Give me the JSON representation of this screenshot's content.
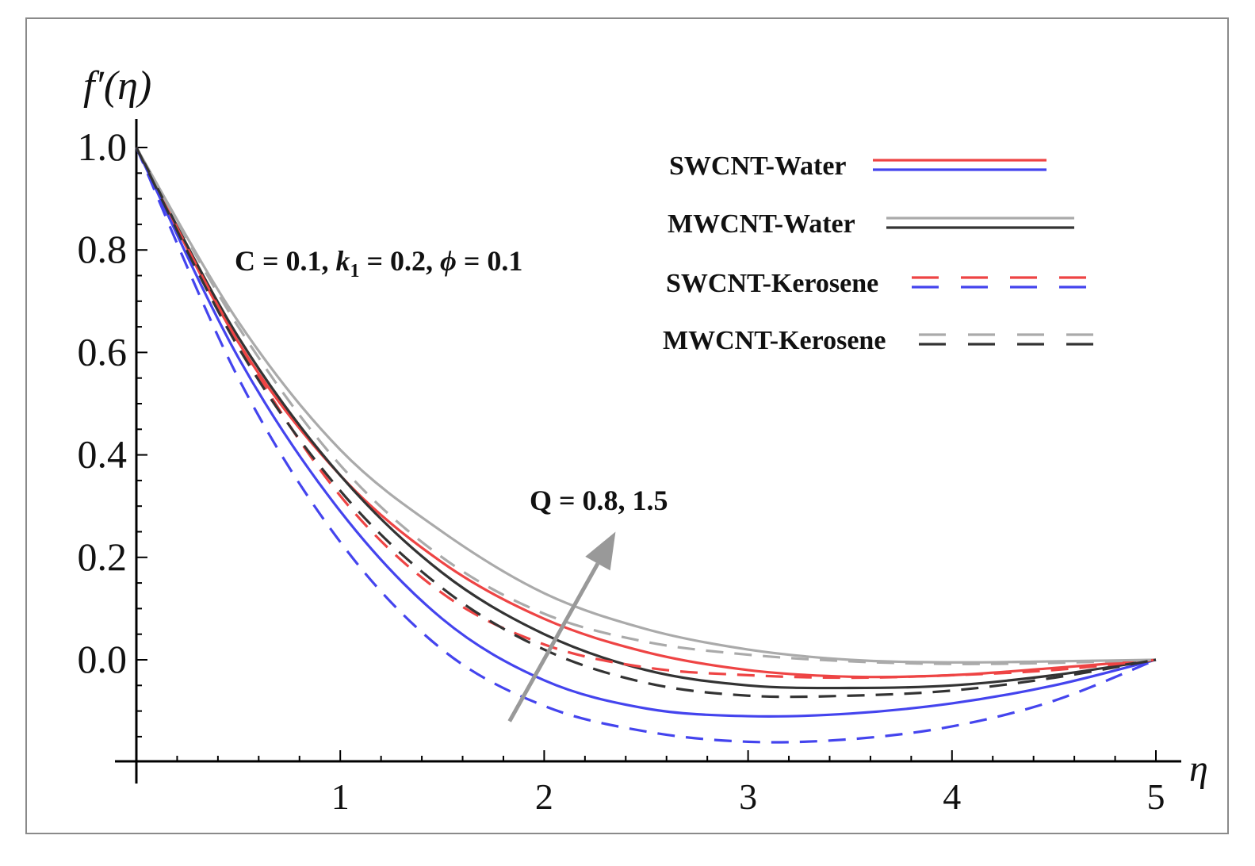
{
  "chart_data": {
    "type": "line",
    "title": "",
    "xlabel": "η",
    "ylabel": "f′(η)",
    "xlim": [
      0,
      5
    ],
    "ylim": [
      -0.2,
      1.0
    ],
    "x_ticks": [
      1,
      2,
      3,
      4,
      5
    ],
    "y_ticks": [
      0.0,
      0.2,
      0.4,
      0.6,
      0.8,
      1.0
    ],
    "x_tick_labels": [
      "1",
      "2",
      "3",
      "4",
      "5"
    ],
    "y_tick_labels": [
      "0.0",
      "0.2",
      "0.4",
      "0.6",
      "0.8",
      "1.0"
    ],
    "grid": false,
    "legend": [
      {
        "label": "SWCNT-Water",
        "colors": [
          "#ee4444",
          "#4444ee"
        ],
        "dash": false
      },
      {
        "label": "MWCNT-Water",
        "colors": [
          "#aaaaaa",
          "#333333"
        ],
        "dash": false
      },
      {
        "label": "SWCNT-Kerosene",
        "colors": [
          "#ee4444",
          "#4444ee"
        ],
        "dash": true
      },
      {
        "label": "MWCNT-Kerosene",
        "colors": [
          "#aaaaaa",
          "#333333"
        ],
        "dash": true
      }
    ],
    "annotations": {
      "params_prefix": "C = 0.1, ",
      "params_k": "k",
      "params_k_sub": "1",
      "params_mid": " = 0.2, ",
      "params_phi": "ϕ",
      "params_suffix": " = 0.1",
      "arrow_label": "Q = 0.8, 1.5",
      "arrow_from": [
        1.83,
        -0.12
      ],
      "arrow_to": [
        2.35,
        0.25
      ]
    },
    "series": [
      {
        "name": "SWCNT-Water Q=1.5",
        "color": "#ee4444",
        "dash": false,
        "x": [
          0,
          0.5,
          1,
          1.5,
          2,
          2.5,
          3,
          3.5,
          4,
          4.5,
          5
        ],
        "y": [
          1.0,
          0.62,
          0.36,
          0.19,
          0.08,
          0.015,
          -0.02,
          -0.033,
          -0.03,
          -0.016,
          0.0
        ]
      },
      {
        "name": "SWCNT-Water Q=0.8",
        "color": "#4444ee",
        "dash": false,
        "x": [
          0,
          0.5,
          1,
          1.5,
          2,
          2.5,
          3,
          3.5,
          4,
          4.5,
          5
        ],
        "y": [
          1.0,
          0.59,
          0.29,
          0.08,
          -0.04,
          -0.095,
          -0.11,
          -0.105,
          -0.085,
          -0.05,
          0.0
        ]
      },
      {
        "name": "MWCNT-Water Q=1.5",
        "color": "#aaaaaa",
        "dash": false,
        "x": [
          0,
          0.5,
          1,
          1.5,
          2,
          2.5,
          3,
          3.5,
          4,
          4.5,
          5
        ],
        "y": [
          1.0,
          0.66,
          0.41,
          0.25,
          0.13,
          0.06,
          0.02,
          0.0,
          -0.005,
          -0.003,
          0.0
        ]
      },
      {
        "name": "MWCNT-Water Q=0.8",
        "color": "#333333",
        "dash": false,
        "x": [
          0,
          0.5,
          1,
          1.5,
          2,
          2.5,
          3,
          3.5,
          4,
          4.5,
          5
        ],
        "y": [
          1.0,
          0.63,
          0.36,
          0.17,
          0.05,
          -0.02,
          -0.05,
          -0.055,
          -0.05,
          -0.03,
          0.0
        ]
      },
      {
        "name": "SWCNT-Kerosene Q=1.5",
        "color": "#ee4444",
        "dash": true,
        "x": [
          0,
          0.5,
          1,
          1.5,
          2,
          2.5,
          3,
          3.5,
          4,
          4.5,
          5
        ],
        "y": [
          1.0,
          0.62,
          0.32,
          0.13,
          0.03,
          -0.015,
          -0.03,
          -0.035,
          -0.03,
          -0.02,
          0.0
        ]
      },
      {
        "name": "SWCNT-Kerosene Q=0.8",
        "color": "#4444ee",
        "dash": true,
        "x": [
          0,
          0.5,
          1,
          1.5,
          2,
          2.5,
          3,
          3.5,
          4,
          4.5,
          5
        ],
        "y": [
          1.0,
          0.55,
          0.23,
          0.02,
          -0.09,
          -0.14,
          -0.16,
          -0.155,
          -0.13,
          -0.08,
          0.0
        ]
      },
      {
        "name": "MWCNT-Kerosene Q=1.5",
        "color": "#aaaaaa",
        "dash": true,
        "x": [
          0,
          0.5,
          1,
          1.5,
          2,
          2.5,
          3,
          3.5,
          4,
          4.5,
          5
        ],
        "y": [
          1.0,
          0.65,
          0.38,
          0.2,
          0.09,
          0.035,
          0.01,
          -0.003,
          -0.008,
          -0.006,
          0.0
        ]
      },
      {
        "name": "MWCNT-Kerosene Q=0.8",
        "color": "#333333",
        "dash": true,
        "x": [
          0,
          0.5,
          1,
          1.5,
          2,
          2.5,
          3,
          3.5,
          4,
          4.5,
          5
        ],
        "y": [
          1.0,
          0.61,
          0.33,
          0.14,
          0.02,
          -0.045,
          -0.07,
          -0.07,
          -0.06,
          -0.035,
          0.0
        ]
      }
    ]
  }
}
